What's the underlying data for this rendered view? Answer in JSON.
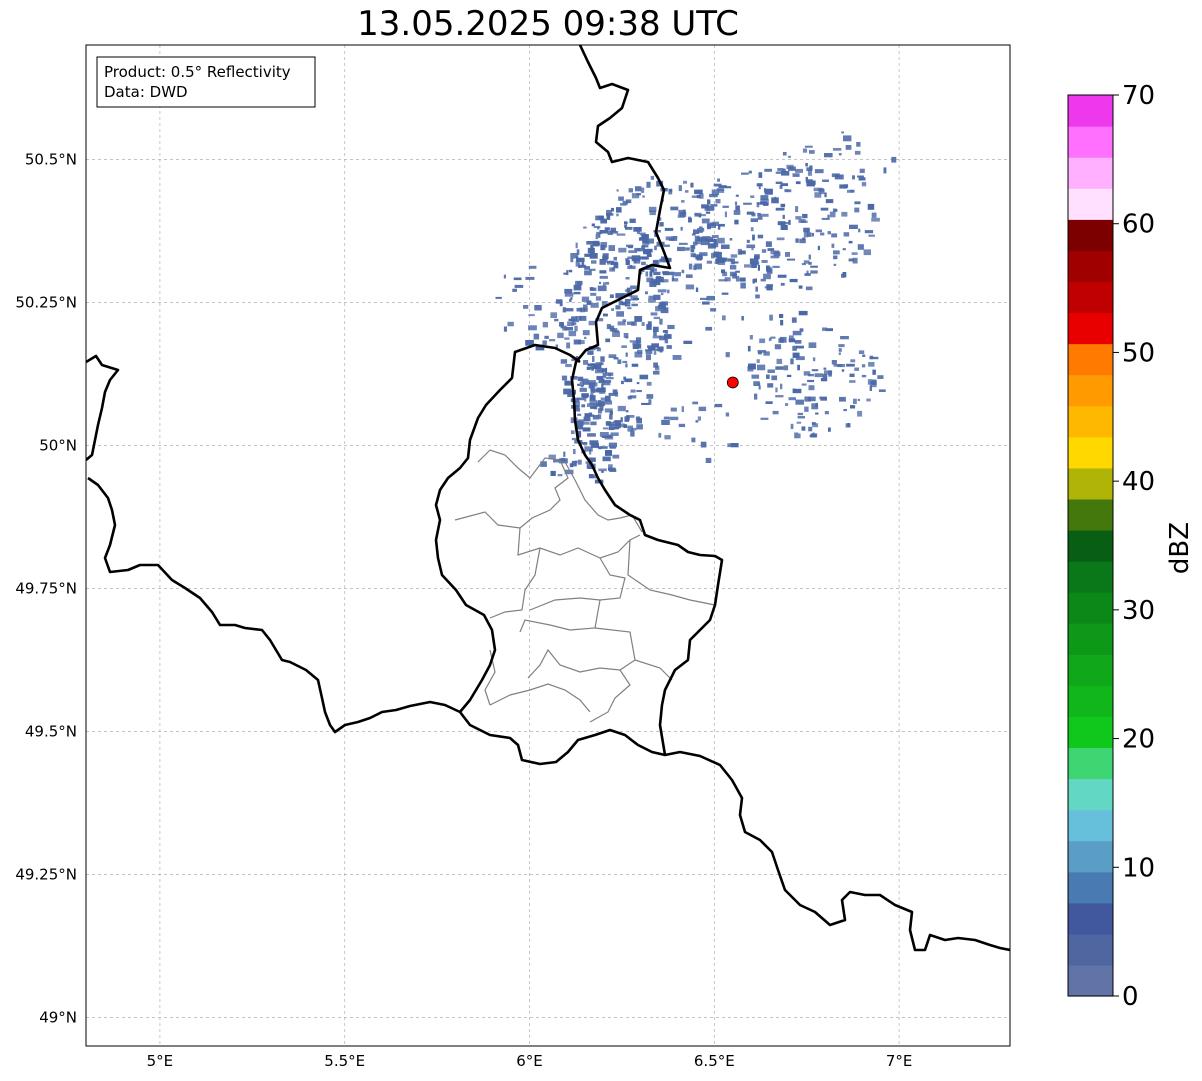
{
  "title": "13.05.2025 09:38 UTC",
  "info_box": {
    "line1": "Product: 0.5° Reflectivity",
    "line2": "Data: DWD"
  },
  "axes": {
    "lat_ticks": [
      {
        "value": 50.5,
        "label": "50.5°N"
      },
      {
        "value": 50.25,
        "label": "50.25°N"
      },
      {
        "value": 50.0,
        "label": "50°N"
      },
      {
        "value": 49.75,
        "label": "49.75°N"
      },
      {
        "value": 49.5,
        "label": "49.5°N"
      },
      {
        "value": 49.25,
        "label": "49.25°N"
      },
      {
        "value": 49.0,
        "label": "49°N"
      }
    ],
    "lon_ticks": [
      {
        "value": 5.0,
        "label": "5°E"
      },
      {
        "value": 5.5,
        "label": "5.5°E"
      },
      {
        "value": 6.0,
        "label": "6°E"
      },
      {
        "value": 6.5,
        "label": "6.5°E"
      },
      {
        "value": 7.0,
        "label": "7°E"
      }
    ],
    "lon_range": [
      4.8,
      7.3
    ],
    "lat_range": [
      48.95,
      50.7
    ],
    "grid": true
  },
  "radar_site": {
    "lon": 6.55,
    "lat": 50.11,
    "color": "#ff0000"
  },
  "colorbar": {
    "title": "dBZ",
    "min": 0,
    "max": 70,
    "ticks": [
      {
        "value": 0,
        "label": "0"
      },
      {
        "value": 10,
        "label": "10"
      },
      {
        "value": 20,
        "label": "20"
      },
      {
        "value": 30,
        "label": "30"
      },
      {
        "value": 40,
        "label": "40"
      },
      {
        "value": 50,
        "label": "50"
      },
      {
        "value": 60,
        "label": "60"
      },
      {
        "value": 70,
        "label": "70"
      }
    ],
    "colors": [
      "#6273a8",
      "#5066a0",
      "#42589e",
      "#4a7ab2",
      "#5a9ec6",
      "#66c0dc",
      "#62d8c4",
      "#3ed672",
      "#10c81c",
      "#10b61a",
      "#10a81a",
      "#0e9818",
      "#0c8818",
      "#0a7818",
      "#085e12",
      "#44780c",
      "#b0b406",
      "#ffd800",
      "#ffb800",
      "#ff9a00",
      "#ff7a00",
      "#e80000",
      "#c00000",
      "#a00000",
      "#7c0000",
      "#ffe0ff",
      "#ffb0ff",
      "#ff70ff",
      "#ee38ee"
    ]
  },
  "echo_color": "#4a67a6"
}
